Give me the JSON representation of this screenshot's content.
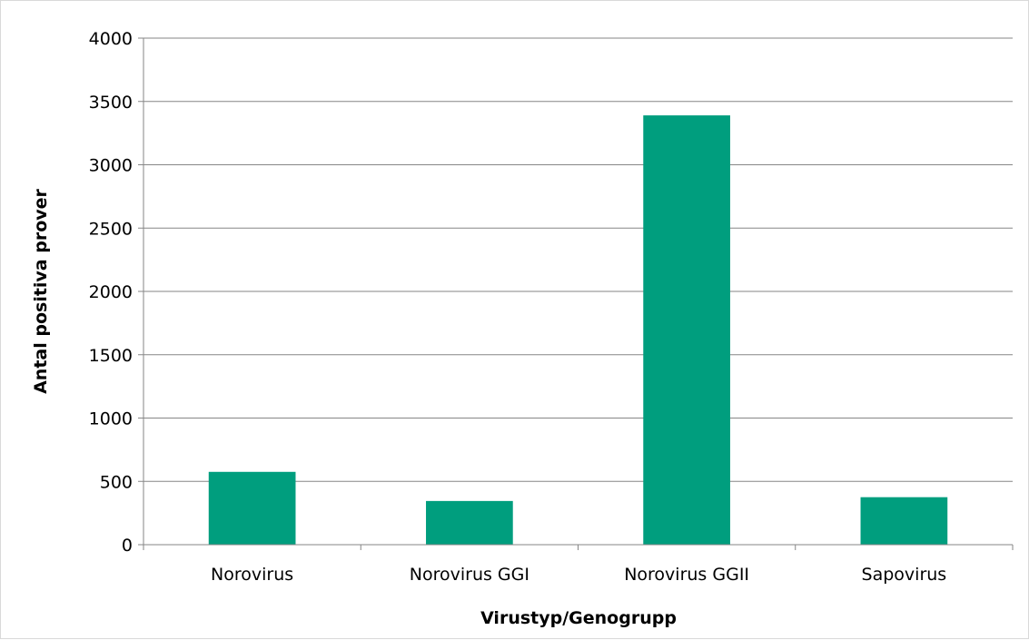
{
  "chart_data": {
    "type": "bar",
    "categories": [
      "Norovirus",
      "Norovirus GGI",
      "Norovirus GGII",
      "Sapovirus"
    ],
    "values": [
      575,
      345,
      3390,
      375
    ],
    "title": "",
    "xlabel": "Virustyp/Genogrupp",
    "ylabel": "Antal positiva prover",
    "ylim": [
      0,
      4000
    ],
    "yticks": [
      0,
      500,
      1000,
      1500,
      2000,
      2500,
      3000,
      3500,
      4000
    ],
    "grid": true,
    "legend": "none",
    "bar_color": "#009e7e",
    "grid_color": "#868686"
  }
}
